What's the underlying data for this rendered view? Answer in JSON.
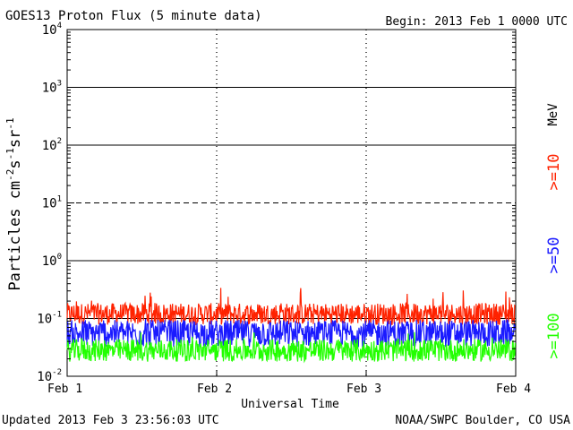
{
  "chart_data": {
    "type": "line",
    "title": "GOES13 Proton Flux (5 minute data)",
    "begin": "Begin: 2013 Feb 1 0000 UTC",
    "xlabel": "Universal Time",
    "ylabel": {
      "base": "Particles cm",
      "sup1": "-2",
      "s": "s",
      "sup2": "-1",
      "sr": "sr",
      "sup3": "-1"
    },
    "x_ticks": [
      "Feb 1",
      "Feb 2",
      "Feb 3",
      "Feb 4"
    ],
    "x_range_days": [
      0,
      3
    ],
    "y_scale": "log",
    "y_range": [
      0.01,
      10000
    ],
    "y_ticks": [
      {
        "base": "10",
        "exp": "4"
      },
      {
        "base": "10",
        "exp": "3"
      },
      {
        "base": "10",
        "exp": "2"
      },
      {
        "base": "10",
        "exp": "1"
      },
      {
        "base": "10",
        "exp": "0"
      },
      {
        "base": "10",
        "exp": "-1"
      },
      {
        "base": "10",
        "exp": "-2"
      }
    ],
    "threshold_lines": [
      {
        "value": 10,
        "style": "dashed"
      },
      {
        "value": 1000,
        "style": "solid"
      },
      {
        "value": 100,
        "style": "solid"
      },
      {
        "value": 1,
        "style": "solid"
      },
      {
        "value": 0.1,
        "style": "solid"
      }
    ],
    "unit": "MeV",
    "series": [
      {
        "name": ">=10",
        "color": "#ff2200",
        "typical": 0.12,
        "max": 0.35,
        "min": 0.07
      },
      {
        "name": ">=50",
        "color": "#1a1aff",
        "typical": 0.055,
        "max": 0.11,
        "min": 0.028
      },
      {
        "name": ">=100",
        "color": "#22ff00",
        "typical": 0.028,
        "max": 0.06,
        "min": 0.016
      }
    ]
  },
  "footer": {
    "updated": "Updated 2013 Feb  3 23:56:03 UTC",
    "source": "NOAA/SWPC Boulder, CO USA"
  }
}
